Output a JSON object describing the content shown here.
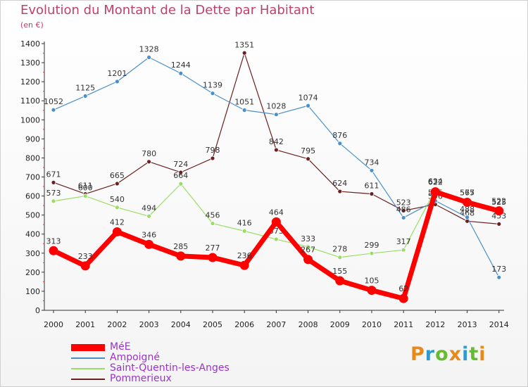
{
  "header": {
    "title": "Evolution du Montant de la Dette par Habitant",
    "unit": "(en €)"
  },
  "brand": {
    "name": "Proxiti",
    "letters": [
      {
        "ch": "P",
        "color": "#e88a1a"
      },
      {
        "ch": "r",
        "color": "#3399cc"
      },
      {
        "ch": "o",
        "color": "#66bb33"
      },
      {
        "ch": "x",
        "color": "#e88a1a"
      },
      {
        "ch": "i",
        "color": "#3399cc"
      },
      {
        "ch": "t",
        "color": "#66bb33"
      },
      {
        "ch": "i",
        "color": "#e88a1a"
      }
    ]
  },
  "chart_data": {
    "type": "line",
    "title": "Evolution du Montant de la Dette par Habitant",
    "subtitle": "(en €)",
    "x": [
      "2000",
      "2001",
      "2002",
      "2003",
      "2004",
      "2005",
      "2006",
      "2007",
      "2008",
      "2009",
      "2010",
      "2011",
      "2012",
      "2013",
      "2014"
    ],
    "ylim": [
      0,
      1400
    ],
    "yticks": [
      0,
      100,
      200,
      300,
      400,
      500,
      600,
      700,
      800,
      900,
      1000,
      1100,
      1200,
      1300,
      1400
    ],
    "grid": false,
    "legend_position": "bottom-left",
    "series": [
      {
        "name": "MéE",
        "color": "#ff0000",
        "values": [
          313,
          233,
          412,
          346,
          285,
          277,
          236,
          464,
          267,
          155,
          105,
          62,
          622,
          567,
          522
        ]
      },
      {
        "name": "Ampoigné",
        "color": "#4a8fc8",
        "values": [
          1052,
          1125,
          1201,
          1328,
          1244,
          1139,
          1051,
          1028,
          1074,
          876,
          734,
          486,
          575,
          488,
          173
        ]
      },
      {
        "name": "Saint-Quentin-les-Anges",
        "color": "#99dd66",
        "values": [
          573,
          600,
          540,
          494,
          664,
          456,
          416,
          373,
          333,
          278,
          299,
          317,
          634,
          575,
          525
        ]
      },
      {
        "name": "Pommerieux",
        "color": "#6b1f1f",
        "values": [
          671,
          611,
          665,
          780,
          724,
          798,
          1351,
          842,
          795,
          624,
          611,
          523,
          556,
          468,
          453
        ]
      }
    ]
  }
}
